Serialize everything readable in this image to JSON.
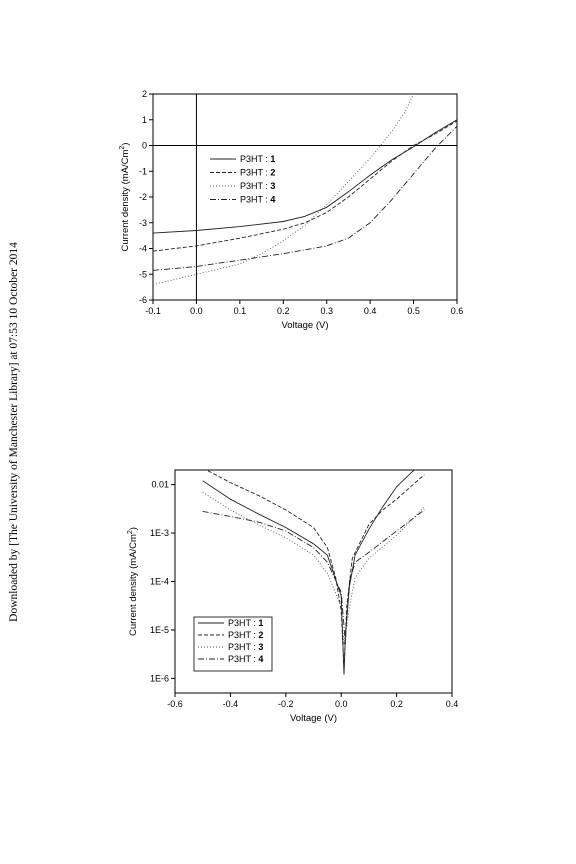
{
  "side_note": "Downloaded by [The University of Manchester Library] at 07:53 10 October 2014",
  "chart_data": [
    {
      "type": "line",
      "xlabel": "Voltage (V)",
      "ylabel": "Current density (mA/Cm",
      "ylabel_sup": "2",
      "ylabel_tail": ")",
      "xlim": [
        -0.1,
        0.6
      ],
      "ylim": [
        -6,
        2
      ],
      "xticks": [
        -0.1,
        0,
        0.1,
        0.2,
        0.3,
        0.4,
        0.5,
        0.6
      ],
      "xtick_labels": [
        "-0.1",
        "0.0",
        "0.1",
        "0.2",
        "0.3",
        "0.4",
        "0.5",
        "0.6"
      ],
      "yticks": [
        2,
        1,
        0,
        -1,
        -2,
        -3,
        -4,
        -5,
        -6
      ],
      "ytick_labels": [
        "2",
        "1",
        "0",
        "-1",
        "-2",
        "-3",
        "-4",
        "-5",
        "-6"
      ],
      "legend_position": "center-left",
      "series": [
        {
          "name": "P3HT : ",
          "num": "1",
          "style": "solid",
          "x": [
            -0.1,
            0,
            0.1,
            0.2,
            0.25,
            0.3,
            0.35,
            0.4,
            0.45,
            0.5,
            0.55,
            0.6
          ],
          "y": [
            -3.4,
            -3.3,
            -3.15,
            -2.95,
            -2.75,
            -2.4,
            -1.8,
            -1.15,
            -0.55,
            -0.05,
            0.5,
            1.0
          ]
        },
        {
          "name": "P3HT : ",
          "num": "2",
          "style": "dashed",
          "x": [
            -0.1,
            0,
            0.1,
            0.2,
            0.25,
            0.3,
            0.35,
            0.4,
            0.45,
            0.5,
            0.55,
            0.6
          ],
          "y": [
            -4.1,
            -3.9,
            -3.6,
            -3.25,
            -3.0,
            -2.6,
            -2.0,
            -1.3,
            -0.6,
            0.0,
            0.45,
            0.95
          ]
        },
        {
          "name": "P3HT : ",
          "num": "3",
          "style": "dotted",
          "x": [
            -0.1,
            0,
            0.1,
            0.15,
            0.2,
            0.25,
            0.3,
            0.35,
            0.4,
            0.45,
            0.48,
            0.5
          ],
          "y": [
            -5.4,
            -5.0,
            -4.6,
            -4.2,
            -3.7,
            -3.1,
            -2.3,
            -1.4,
            -0.5,
            0.55,
            1.3,
            2.0
          ]
        },
        {
          "name": "P3HT : ",
          "num": "4",
          "style": "dashdot",
          "x": [
            -0.1,
            0,
            0.1,
            0.2,
            0.3,
            0.35,
            0.4,
            0.45,
            0.5,
            0.55,
            0.6
          ],
          "y": [
            -4.85,
            -4.7,
            -4.45,
            -4.2,
            -3.9,
            -3.6,
            -3.0,
            -2.1,
            -1.1,
            -0.1,
            0.75
          ]
        }
      ]
    },
    {
      "type": "line",
      "xlabel": "Voltage (V)",
      "ylabel": "Current density (mA/Cm",
      "ylabel_sup": "2",
      "ylabel_tail": ")",
      "log_y": true,
      "xlim": [
        -0.6,
        0.4
      ],
      "ylim": [
        5e-07,
        0.02
      ],
      "xticks": [
        -0.6,
        -0.4,
        -0.2,
        0,
        0.2,
        0.4
      ],
      "xtick_labels": [
        "-0.6",
        "-0.4",
        "-0.2",
        "0.0",
        "0.2",
        "0.4"
      ],
      "yticks": [
        0.01,
        0.001,
        0.0001,
        1e-05,
        1e-06
      ],
      "ytick_labels": [
        "0.01",
        "1E-3",
        "1E-4",
        "1E-5",
        "1E-6"
      ],
      "legend_position": "bottom-left",
      "series": [
        {
          "name": "P3HT : ",
          "num": "1",
          "style": "solid",
          "x": [
            -0.5,
            -0.4,
            -0.3,
            -0.2,
            -0.1,
            -0.05,
            0,
            0.005,
            0.01,
            0.015,
            0.03,
            0.05,
            0.1,
            0.15,
            0.2,
            0.25,
            0.3
          ],
          "y": [
            0.012,
            0.005,
            0.0025,
            0.0013,
            0.0006,
            0.00035,
            5e-05,
            8e-06,
            1.2e-06,
            8e-06,
            8e-05,
            0.00035,
            0.0012,
            0.0035,
            0.009,
            0.017,
            0.03
          ]
        },
        {
          "name": "P3HT : ",
          "num": "2",
          "style": "dashed",
          "x": [
            -0.5,
            -0.4,
            -0.3,
            -0.2,
            -0.1,
            -0.05,
            -0.02,
            0,
            0.01,
            0.02,
            0.04,
            0.1,
            0.15,
            0.2,
            0.3
          ],
          "y": [
            0.022,
            0.011,
            0.006,
            0.003,
            0.0013,
            0.0005,
            0.00012,
            2.5e-05,
            1.5e-06,
            3e-05,
            0.0003,
            0.0015,
            0.003,
            0.005,
            0.016
          ]
        },
        {
          "name": "P3HT : ",
          "num": "3",
          "style": "dotted",
          "x": [
            -0.5,
            -0.4,
            -0.3,
            -0.2,
            -0.1,
            -0.05,
            0,
            0.01,
            0.02,
            0.03,
            0.05,
            0.1,
            0.2,
            0.3
          ],
          "y": [
            0.007,
            0.003,
            0.0015,
            0.0008,
            0.00035,
            0.00015,
            3e-05,
            5e-06,
            1.2e-05,
            3e-05,
            0.00012,
            0.0003,
            0.0009,
            0.0035
          ]
        },
        {
          "name": "P3HT : ",
          "num": "4",
          "style": "dashdot",
          "x": [
            -0.5,
            -0.4,
            -0.3,
            -0.2,
            -0.1,
            -0.05,
            0,
            0.01,
            0.015,
            0.02,
            0.03,
            0.05,
            0.1,
            0.2,
            0.3
          ],
          "y": [
            0.0028,
            0.0022,
            0.0017,
            0.0011,
            0.0005,
            0.00025,
            6e-05,
            1.2e-05,
            5e-06,
            2e-05,
            0.0001,
            0.00025,
            0.0004,
            0.0011,
            0.003
          ]
        }
      ]
    }
  ]
}
